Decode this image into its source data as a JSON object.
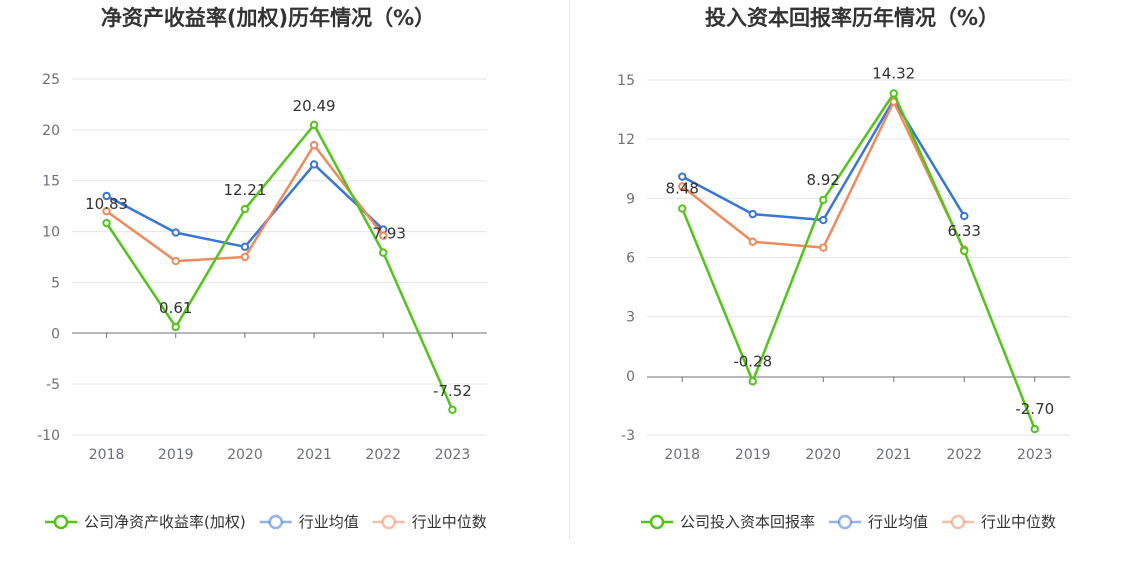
{
  "chart_data": [
    {
      "type": "line",
      "title": "净资产收益率(加权)历年情况（%）",
      "categories": [
        "2018",
        "2019",
        "2020",
        "2021",
        "2022",
        "2023"
      ],
      "ylim": [
        -10,
        25
      ],
      "yticks": [
        "25",
        "20",
        "15",
        "10",
        "5",
        "0",
        "-5",
        "-10"
      ],
      "grid": true,
      "legend_position": "bottom",
      "series": [
        {
          "name": "公司净资产收益率(加权)",
          "color": "#52c41a",
          "values": [
            10.83,
            0.61,
            12.21,
            20.49,
            7.93,
            -7.52
          ],
          "labels": [
            "10.83",
            "0.61",
            "12.21",
            "20.49",
            "7.93",
            "-7.52"
          ]
        },
        {
          "name": "行业均值",
          "color": "#3a76d8",
          "values": [
            13.5,
            9.9,
            8.5,
            16.6,
            10.2,
            null
          ]
        },
        {
          "name": "行业中位数",
          "color": "#f08a5d",
          "values": [
            12.0,
            7.1,
            7.5,
            18.5,
            9.6,
            null
          ]
        }
      ]
    },
    {
      "type": "line",
      "title": "投入资本回报率历年情况（%）",
      "categories": [
        "2018",
        "2019",
        "2020",
        "2021",
        "2022",
        "2023"
      ],
      "ylim": [
        -3,
        15
      ],
      "yticks": [
        "15",
        "12",
        "9",
        "6",
        "3",
        "0",
        "-3"
      ],
      "grid": true,
      "legend_position": "bottom",
      "series": [
        {
          "name": "公司投入资本回报率",
          "color": "#52c41a",
          "values": [
            8.48,
            -0.28,
            8.92,
            14.32,
            6.33,
            -2.7
          ],
          "labels": [
            "8.48",
            "-0.28",
            "8.92",
            "14.32",
            "6.33",
            "-2.70"
          ]
        },
        {
          "name": "行业均值",
          "color": "#3a76d8",
          "values": [
            10.1,
            8.2,
            7.9,
            14.0,
            8.1,
            null
          ]
        },
        {
          "name": "行业中位数",
          "color": "#f08a5d",
          "values": [
            9.6,
            6.8,
            6.5,
            13.9,
            6.4,
            null
          ]
        }
      ]
    }
  ]
}
